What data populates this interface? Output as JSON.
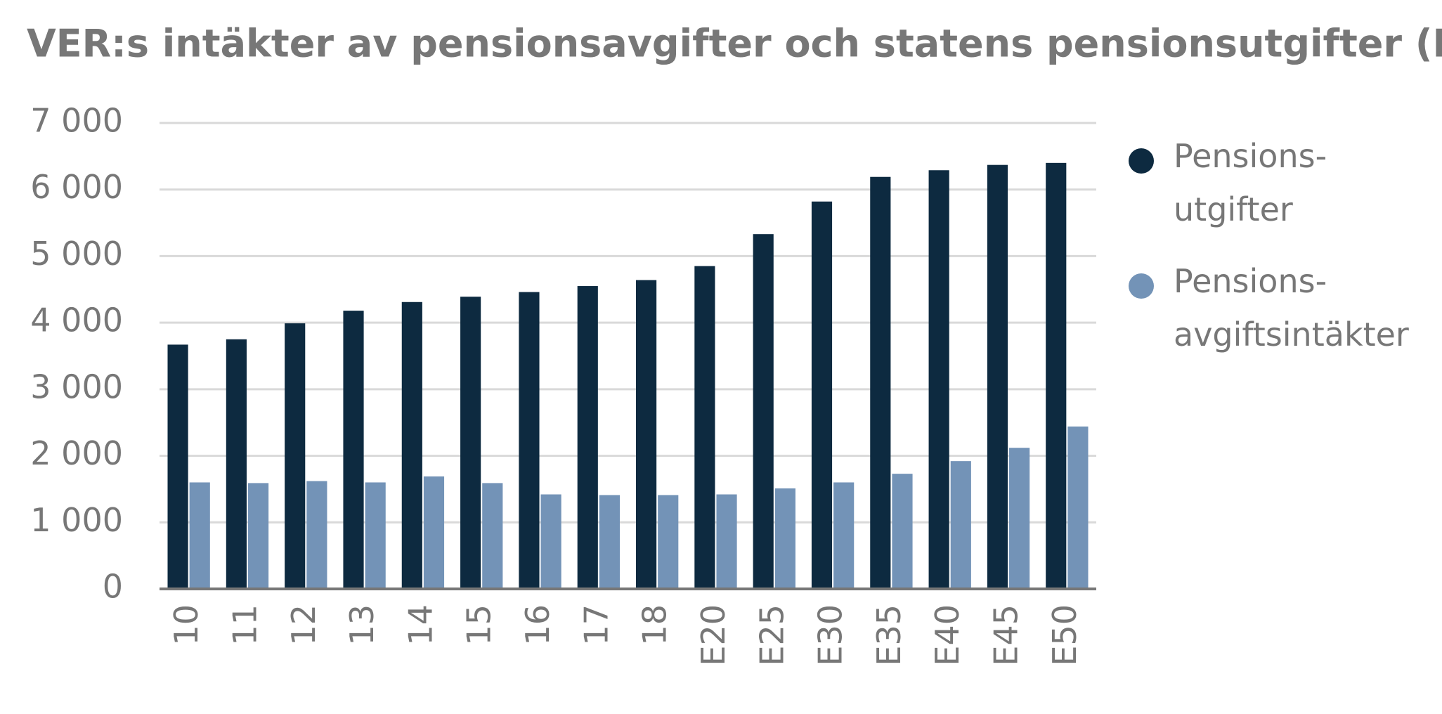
{
  "chart_data": {
    "type": "bar",
    "title": "VER:s intäkter av pensionsavgifter och statens pensionsutgifter (Mn euro)",
    "categories": [
      "10",
      "11",
      "12",
      "13",
      "14",
      "15",
      "16",
      "17",
      "18",
      "E20",
      "E25",
      "E30",
      "E35",
      "E40",
      "E45",
      "E50"
    ],
    "series": [
      {
        "name": "Pensions-utgifter",
        "color": "#0d2a40",
        "values": [
          3670,
          3750,
          3990,
          4180,
          4310,
          4390,
          4460,
          4550,
          4640,
          4850,
          5330,
          5820,
          6190,
          6290,
          6370,
          6400
        ]
      },
      {
        "name": "Pensions-avgiftsintäkter",
        "color": "#7393b7",
        "values": [
          1600,
          1590,
          1620,
          1600,
          1690,
          1590,
          1420,
          1410,
          1410,
          1420,
          1510,
          1600,
          1730,
          1920,
          2120,
          2440
        ]
      }
    ],
    "ylim": [
      0,
      7000
    ],
    "yticks": [
      0,
      {
        "value": 1000,
        "label": "1 000"
      },
      {
        "value": 2000,
        "label": "2 000"
      },
      {
        "value": 3000,
        "label": "3 000"
      },
      {
        "value": 4000,
        "label": "4 000"
      },
      {
        "value": 5000,
        "label": "5 000"
      },
      {
        "value": 6000,
        "label": "6 000"
      },
      {
        "value": 7000,
        "label": "7 000"
      }
    ],
    "grid": true,
    "legend": "right"
  }
}
